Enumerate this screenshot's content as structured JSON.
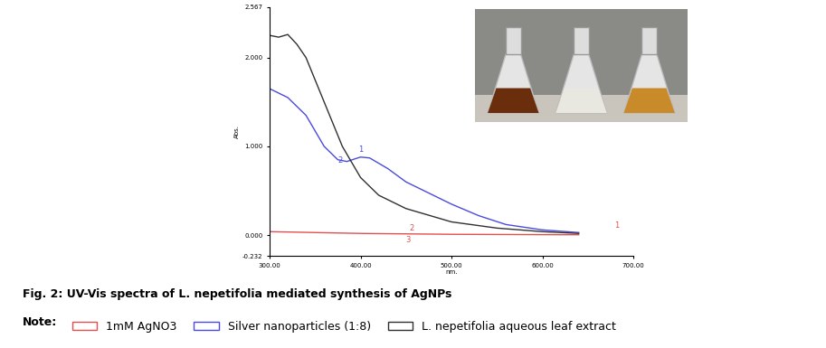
{
  "chart_data": {
    "type": "line",
    "title": "Fig. 2: UV-Vis spectra of L. nepetifolia mediated synthesis of AgNPs",
    "note": "Note:",
    "x_label": "nm.",
    "y_label": "Abs.",
    "xlim": [
      300,
      700
    ],
    "ylim": [
      -0.232,
      2.567
    ],
    "xticks": [
      {
        "value": 300,
        "label": "300.00"
      },
      {
        "value": 400,
        "label": "400.00"
      },
      {
        "value": 500,
        "label": "500.00"
      },
      {
        "value": 600,
        "label": "600.00"
      },
      {
        "value": 700,
        "label": "700.00"
      }
    ],
    "yticks": [
      -0.232,
      {
        "value": 0,
        "label": "0.000"
      },
      {
        "value": 1,
        "label": "1.000"
      },
      {
        "value": 2,
        "label": "2.000"
      },
      2.567
    ],
    "legend": "lower left",
    "series": [
      {
        "name": "1mM AgNO3",
        "color": "#e05050",
        "x": [
          300,
          350,
          400,
          450,
          500,
          550,
          600,
          640
        ],
        "values": [
          0.04,
          0.03,
          0.02,
          0.015,
          0.01,
          0.008,
          0.006,
          0.005
        ]
      },
      {
        "name": "Silver nanoparticles (1:8)",
        "color": "#4a4ae0",
        "x": [
          300,
          320,
          340,
          360,
          375,
          385,
          400,
          410,
          430,
          450,
          480,
          500,
          530,
          560,
          600,
          640
        ],
        "values": [
          1.65,
          1.55,
          1.35,
          1.0,
          0.85,
          0.83,
          0.88,
          0.87,
          0.75,
          0.6,
          0.45,
          0.35,
          0.22,
          0.12,
          0.06,
          0.03
        ]
      },
      {
        "name": "L. nepetifolia aqueous leaf extract",
        "color": "#303030",
        "x": [
          300,
          310,
          320,
          330,
          340,
          360,
          380,
          400,
          420,
          450,
          500,
          550,
          600,
          640
        ],
        "values": [
          2.25,
          2.23,
          2.26,
          2.15,
          2.0,
          1.5,
          1.0,
          0.65,
          0.45,
          0.3,
          0.15,
          0.08,
          0.04,
          0.02
        ]
      }
    ],
    "annotations": [
      {
        "text": "1",
        "x": 400,
        "y": 0.92,
        "color": "#4a4ae0"
      },
      {
        "text": "2",
        "x": 378,
        "y": 0.8,
        "color": "#4a4ae0"
      },
      {
        "text": "1",
        "x": 682,
        "y": 0.06,
        "color": "#e05050"
      },
      {
        "text": "2",
        "x": 456,
        "y": 0.03,
        "color": "#e05050"
      },
      {
        "text": "3",
        "x": 452,
        "y": -0.1,
        "color": "#e05050"
      }
    ]
  }
}
